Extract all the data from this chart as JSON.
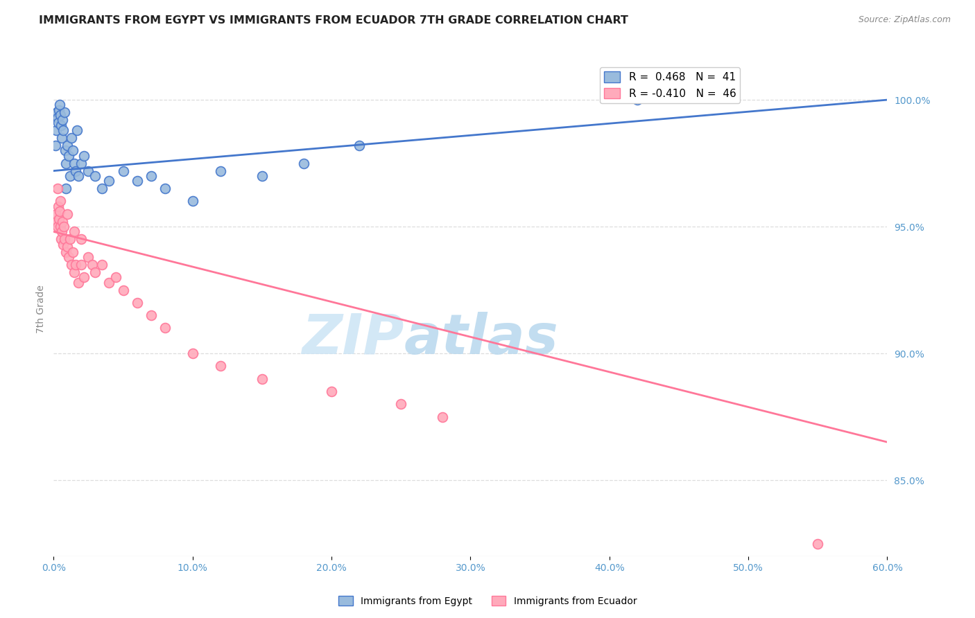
{
  "title": "IMMIGRANTS FROM EGYPT VS IMMIGRANTS FROM ECUADOR 7TH GRADE CORRELATION CHART",
  "source": "Source: ZipAtlas.com",
  "xlabel_vals": [
    0.0,
    10.0,
    20.0,
    30.0,
    40.0,
    50.0,
    60.0
  ],
  "ylabel": "7th Grade",
  "ylabel_right_vals": [
    100.0,
    95.0,
    90.0,
    85.0
  ],
  "xmin": 0.0,
  "xmax": 60.0,
  "ymin": 82.0,
  "ymax": 101.5,
  "legend_egypt": "R =  0.468   N =  41",
  "legend_ecuador": "R = -0.410   N =  46",
  "color_egypt": "#99BBDD",
  "color_ecuador": "#FFAABB",
  "color_line_egypt": "#4477CC",
  "color_line_ecuador": "#FF7799",
  "watermark_zip": "ZIP",
  "watermark_atlas": "atlas",
  "egypt_x": [
    0.15,
    0.2,
    0.25,
    0.3,
    0.35,
    0.4,
    0.5,
    0.55,
    0.6,
    0.65,
    0.7,
    0.8,
    0.85,
    0.9,
    1.0,
    1.1,
    1.2,
    1.3,
    1.4,
    1.5,
    1.6,
    1.7,
    1.8,
    2.0,
    2.2,
    2.5,
    3.0,
    3.5,
    4.0,
    5.0,
    6.0,
    7.0,
    8.0,
    10.0,
    12.0,
    15.0,
    18.0,
    22.0,
    42.0,
    0.45,
    0.9
  ],
  "egypt_y": [
    98.2,
    98.8,
    99.5,
    99.3,
    99.1,
    99.6,
    99.4,
    99.0,
    98.5,
    99.2,
    98.8,
    99.5,
    98.0,
    97.5,
    98.2,
    97.8,
    97.0,
    98.5,
    98.0,
    97.5,
    97.2,
    98.8,
    97.0,
    97.5,
    97.8,
    97.2,
    97.0,
    96.5,
    96.8,
    97.2,
    96.8,
    97.0,
    96.5,
    96.0,
    97.2,
    97.0,
    97.5,
    98.2,
    100.0,
    99.8,
    96.5
  ],
  "ecuador_x": [
    0.1,
    0.2,
    0.3,
    0.35,
    0.4,
    0.45,
    0.5,
    0.55,
    0.6,
    0.65,
    0.7,
    0.75,
    0.8,
    0.9,
    1.0,
    1.1,
    1.2,
    1.3,
    1.4,
    1.5,
    1.6,
    1.8,
    2.0,
    2.2,
    2.5,
    2.8,
    3.0,
    3.5,
    4.0,
    4.5,
    5.0,
    6.0,
    7.0,
    8.0,
    10.0,
    12.0,
    15.0,
    20.0,
    25.0,
    28.0,
    55.0,
    0.3,
    0.5,
    1.0,
    1.5,
    2.0
  ],
  "ecuador_y": [
    95.2,
    95.5,
    95.0,
    95.8,
    95.3,
    95.6,
    95.0,
    94.5,
    94.8,
    95.2,
    94.3,
    95.0,
    94.5,
    94.0,
    94.2,
    93.8,
    94.5,
    93.5,
    94.0,
    93.2,
    93.5,
    92.8,
    93.5,
    93.0,
    93.8,
    93.5,
    93.2,
    93.5,
    92.8,
    93.0,
    92.5,
    92.0,
    91.5,
    91.0,
    90.0,
    89.5,
    89.0,
    88.5,
    88.0,
    87.5,
    82.5,
    96.5,
    96.0,
    95.5,
    94.8,
    94.5
  ],
  "trendline_egypt_x0": 0.0,
  "trendline_egypt_y0": 97.2,
  "trendline_egypt_x1": 60.0,
  "trendline_egypt_y1": 100.0,
  "trendline_ecuador_x0": 0.0,
  "trendline_ecuador_y0": 94.8,
  "trendline_ecuador_x1": 60.0,
  "trendline_ecuador_y1": 86.5
}
